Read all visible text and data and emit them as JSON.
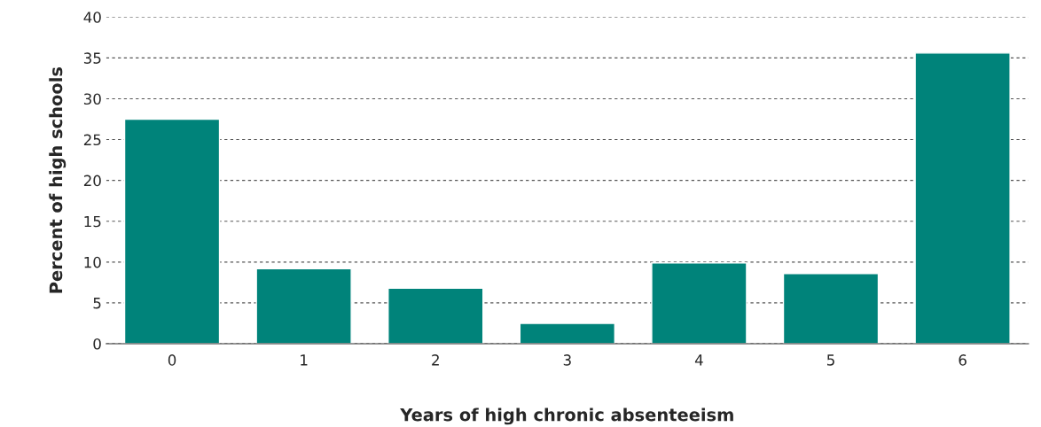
{
  "chart_data": {
    "type": "bar",
    "xlabel": "Years of high chronic absenteeism",
    "ylabel": "Percent of high schools",
    "categories": [
      "0",
      "1",
      "2",
      "3",
      "4",
      "5",
      "6"
    ],
    "values": [
      27.5,
      9.2,
      6.8,
      2.5,
      9.9,
      8.6,
      35.6
    ],
    "color": "#00837a",
    "ylim": [
      0,
      40
    ],
    "yticks": [
      0,
      5,
      10,
      15,
      20,
      25,
      30,
      35,
      40
    ],
    "grid": "y",
    "line_style": "dashed",
    "legend": false
  }
}
